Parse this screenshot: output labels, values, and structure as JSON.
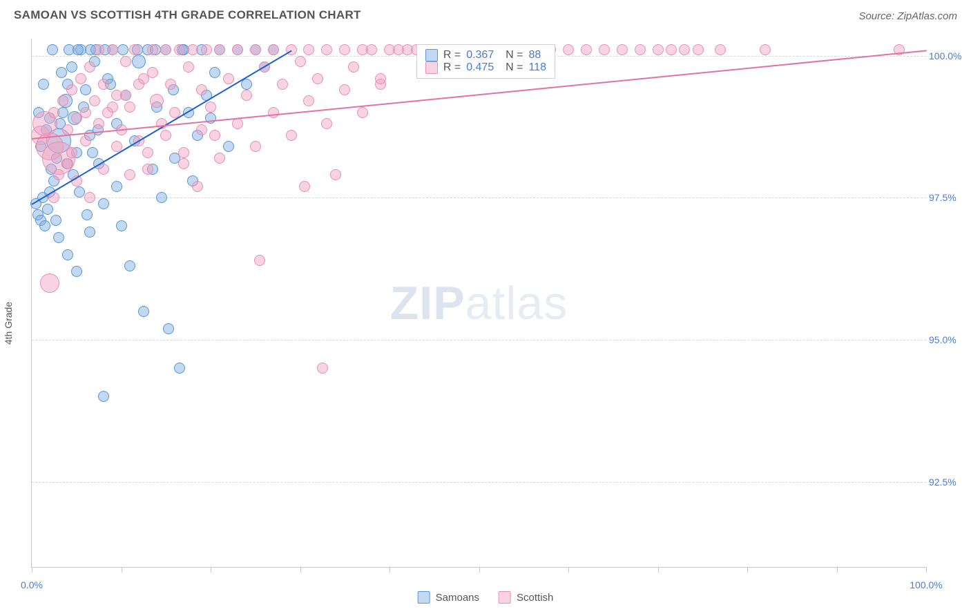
{
  "title": "SAMOAN VS SCOTTISH 4TH GRADE CORRELATION CHART",
  "source": "Source: ZipAtlas.com",
  "watermark": {
    "bold": "ZIP",
    "rest": "atlas"
  },
  "ylabel": "4th Grade",
  "chart": {
    "type": "scatter",
    "background_color": "#ffffff",
    "grid_color": "#d8d8d8",
    "axis_color": "#c8c8c8",
    "label_color": "#4a7bd0",
    "label_fontsize": 14,
    "xlim": [
      0,
      100
    ],
    "ylim": [
      91.0,
      100.3
    ],
    "xticks": [
      0,
      10,
      20,
      30,
      40,
      50,
      60,
      70,
      80,
      90,
      100
    ],
    "xtick_labels": {
      "0": "0.0%",
      "100": "100.0%"
    },
    "yticks": [
      92.5,
      95.0,
      97.5,
      100.0
    ],
    "ytick_labels": [
      "92.5%",
      "95.0%",
      "97.5%",
      "100.0%"
    ],
    "series": [
      {
        "name": "Samoans",
        "fill": "rgba(120,170,225,0.45)",
        "stroke": "#5a95d6",
        "trend_color": "#1f5fd0",
        "R": "0.367",
        "N": "88",
        "trend": {
          "x1": 0,
          "y1": 97.4,
          "x2": 29,
          "y2": 100.1
        },
        "points": [
          [
            0.5,
            97.4,
            8
          ],
          [
            0.7,
            97.2,
            8
          ],
          [
            1.0,
            97.1,
            8
          ],
          [
            1.2,
            97.5,
            8
          ],
          [
            1.5,
            97.0,
            8
          ],
          [
            1.8,
            97.3,
            8
          ],
          [
            2.0,
            97.6,
            8
          ],
          [
            2.2,
            98.0,
            8
          ],
          [
            2.5,
            97.8,
            8
          ],
          [
            2.8,
            98.2,
            8
          ],
          [
            3.0,
            98.5,
            18
          ],
          [
            3.2,
            98.8,
            8
          ],
          [
            3.5,
            99.0,
            8
          ],
          [
            3.8,
            99.2,
            10
          ],
          [
            4.0,
            99.5,
            8
          ],
          [
            4.2,
            100.1,
            8
          ],
          [
            4.5,
            99.8,
            8
          ],
          [
            4.8,
            98.9,
            10
          ],
          [
            5.0,
            98.3,
            8
          ],
          [
            5.5,
            100.1,
            8
          ],
          [
            6.0,
            99.4,
            8
          ],
          [
            6.2,
            97.2,
            8
          ],
          [
            6.5,
            98.6,
            8
          ],
          [
            7.0,
            99.9,
            8
          ],
          [
            7.2,
            100.1,
            8
          ],
          [
            7.5,
            98.1,
            8
          ],
          [
            8.0,
            97.4,
            8
          ],
          [
            8.5,
            99.6,
            8
          ],
          [
            9.0,
            100.1,
            8
          ],
          [
            9.5,
            98.8,
            8
          ],
          [
            10.0,
            97.0,
            8
          ],
          [
            10.5,
            99.3,
            8
          ],
          [
            11.0,
            96.3,
            8
          ],
          [
            11.5,
            98.5,
            8
          ],
          [
            12.0,
            99.9,
            10
          ],
          [
            12.5,
            95.5,
            8
          ],
          [
            13.0,
            100.1,
            8
          ],
          [
            13.5,
            98.0,
            8
          ],
          [
            14.0,
            99.1,
            8
          ],
          [
            14.5,
            97.5,
            8
          ],
          [
            15.0,
            100.1,
            8
          ],
          [
            15.3,
            95.2,
            8
          ],
          [
            15.8,
            99.4,
            8
          ],
          [
            16.0,
            98.2,
            8
          ],
          [
            16.5,
            94.5,
            8
          ],
          [
            17.0,
            100.1,
            8
          ],
          [
            17.5,
            99.0,
            8
          ],
          [
            18.0,
            97.8,
            8
          ],
          [
            18.5,
            98.6,
            8
          ],
          [
            19.0,
            100.1,
            8
          ],
          [
            19.5,
            99.3,
            8
          ],
          [
            20.0,
            98.9,
            8
          ],
          [
            20.5,
            99.7,
            8
          ],
          [
            21.0,
            100.1,
            8
          ],
          [
            22.0,
            98.4,
            8
          ],
          [
            23.0,
            100.1,
            8
          ],
          [
            24.0,
            99.5,
            8
          ],
          [
            25.0,
            100.1,
            8
          ],
          [
            26.0,
            99.8,
            8
          ],
          [
            27.0,
            100.1,
            8
          ],
          [
            3.0,
            96.8,
            8
          ],
          [
            4.0,
            96.5,
            8
          ],
          [
            5.0,
            96.2,
            8
          ],
          [
            2.0,
            98.9,
            8
          ],
          [
            1.0,
            98.4,
            8
          ],
          [
            0.8,
            99.0,
            8
          ],
          [
            1.3,
            99.5,
            8
          ],
          [
            6.5,
            96.9,
            8
          ],
          [
            8.0,
            94.0,
            8
          ],
          [
            9.5,
            97.7,
            8
          ],
          [
            3.3,
            99.7,
            8
          ],
          [
            4.6,
            97.9,
            8
          ],
          [
            5.8,
            99.1,
            8
          ],
          [
            7.4,
            98.7,
            8
          ],
          [
            8.8,
            99.5,
            8
          ],
          [
            2.7,
            97.1,
            8
          ],
          [
            3.9,
            98.1,
            8
          ],
          [
            5.3,
            97.6,
            8
          ],
          [
            6.8,
            98.3,
            8
          ],
          [
            1.6,
            98.7,
            8
          ],
          [
            2.3,
            100.1,
            8
          ],
          [
            11.8,
            100.1,
            8
          ],
          [
            13.8,
            100.1,
            8
          ],
          [
            16.8,
            100.1,
            8
          ],
          [
            10.2,
            100.1,
            8
          ],
          [
            8.2,
            100.1,
            8
          ],
          [
            6.6,
            100.1,
            8
          ],
          [
            5.2,
            100.1,
            8
          ]
        ]
      },
      {
        "name": "Scottish",
        "fill": "rgba(240,160,190,0.45)",
        "stroke": "#e68fb3",
        "trend_color": "#e670a0",
        "R": "0.475",
        "N": "118",
        "trend": {
          "x1": 0,
          "y1": 98.55,
          "x2": 100,
          "y2": 100.1
        },
        "points": [
          [
            1.0,
            98.6,
            14
          ],
          [
            1.5,
            98.8,
            18
          ],
          [
            2.0,
            98.4,
            20
          ],
          [
            2.5,
            99.0,
            8
          ],
          [
            3.0,
            98.2,
            24
          ],
          [
            3.5,
            99.2,
            8
          ],
          [
            4.0,
            98.7,
            8
          ],
          [
            4.5,
            99.4,
            8
          ],
          [
            5.0,
            98.9,
            8
          ],
          [
            5.5,
            99.6,
            8
          ],
          [
            6.0,
            99.0,
            8
          ],
          [
            6.5,
            99.8,
            8
          ],
          [
            7.0,
            99.2,
            8
          ],
          [
            7.5,
            100.1,
            8
          ],
          [
            8.0,
            99.5,
            8
          ],
          [
            8.5,
            99.0,
            8
          ],
          [
            9.0,
            100.1,
            8
          ],
          [
            9.5,
            99.3,
            8
          ],
          [
            10.0,
            98.7,
            8
          ],
          [
            10.5,
            99.9,
            8
          ],
          [
            11.0,
            99.1,
            8
          ],
          [
            11.5,
            100.1,
            8
          ],
          [
            12.0,
            98.5,
            8
          ],
          [
            12.5,
            99.6,
            8
          ],
          [
            13.0,
            98.0,
            8
          ],
          [
            13.5,
            100.1,
            8
          ],
          [
            14.0,
            99.2,
            10
          ],
          [
            14.5,
            98.8,
            8
          ],
          [
            15.0,
            100.1,
            8
          ],
          [
            15.5,
            99.5,
            8
          ],
          [
            16.0,
            99.0,
            8
          ],
          [
            16.5,
            100.1,
            8
          ],
          [
            17.0,
            98.3,
            8
          ],
          [
            17.5,
            99.8,
            8
          ],
          [
            18.0,
            100.1,
            8
          ],
          [
            18.5,
            97.7,
            8
          ],
          [
            19.0,
            99.4,
            8
          ],
          [
            19.5,
            100.1,
            8
          ],
          [
            20.0,
            99.1,
            8
          ],
          [
            20.5,
            98.6,
            8
          ],
          [
            21.0,
            100.1,
            8
          ],
          [
            22.0,
            99.6,
            8
          ],
          [
            23.0,
            100.1,
            8
          ],
          [
            24.0,
            99.3,
            8
          ],
          [
            25.0,
            100.1,
            8
          ],
          [
            25.5,
            96.4,
            8
          ],
          [
            26.0,
            99.8,
            8
          ],
          [
            27.0,
            100.1,
            8
          ],
          [
            28.0,
            99.5,
            8
          ],
          [
            29.0,
            100.1,
            8
          ],
          [
            30.0,
            99.9,
            8
          ],
          [
            30.5,
            97.7,
            8
          ],
          [
            31.0,
            100.1,
            8
          ],
          [
            32.0,
            99.6,
            8
          ],
          [
            32.5,
            94.5,
            8
          ],
          [
            33.0,
            100.1,
            8
          ],
          [
            34.0,
            97.9,
            8
          ],
          [
            35.0,
            100.1,
            8
          ],
          [
            36.0,
            99.8,
            8
          ],
          [
            37.0,
            100.1,
            8
          ],
          [
            38.0,
            100.1,
            8
          ],
          [
            39.0,
            99.5,
            8
          ],
          [
            40.0,
            100.1,
            8
          ],
          [
            41.0,
            100.1,
            8
          ],
          [
            42.0,
            100.1,
            8
          ],
          [
            43.0,
            100.1,
            8
          ],
          [
            44.0,
            100.1,
            8
          ],
          [
            45.0,
            100.1,
            8
          ],
          [
            46.0,
            100.1,
            8
          ],
          [
            47.0,
            100.1,
            8
          ],
          [
            48.0,
            100.1,
            8
          ],
          [
            50.0,
            100.1,
            8
          ],
          [
            52.0,
            100.1,
            8
          ],
          [
            54.0,
            100.1,
            8
          ],
          [
            56.0,
            100.1,
            8
          ],
          [
            58.0,
            100.1,
            8
          ],
          [
            60.0,
            100.1,
            8
          ],
          [
            62.0,
            100.1,
            8
          ],
          [
            64.0,
            100.1,
            8
          ],
          [
            66.0,
            100.1,
            8
          ],
          [
            68.0,
            100.1,
            8
          ],
          [
            70.0,
            100.1,
            8
          ],
          [
            71.5,
            100.1,
            8
          ],
          [
            73.0,
            100.1,
            8
          ],
          [
            74.5,
            100.1,
            8
          ],
          [
            77.0,
            100.1,
            8
          ],
          [
            82.0,
            100.1,
            8
          ],
          [
            97.0,
            100.1,
            8
          ],
          [
            2.0,
            96.0,
            14
          ],
          [
            2.5,
            97.5,
            8
          ],
          [
            3.0,
            97.9,
            8
          ],
          [
            4.0,
            98.1,
            8
          ],
          [
            5.0,
            97.8,
            8
          ],
          [
            6.5,
            97.5,
            8
          ],
          [
            8.0,
            98.0,
            8
          ],
          [
            9.5,
            98.4,
            8
          ],
          [
            11.0,
            97.9,
            8
          ],
          [
            13.0,
            98.3,
            8
          ],
          [
            15.0,
            98.6,
            8
          ],
          [
            17.0,
            98.1,
            8
          ],
          [
            19.0,
            98.7,
            8
          ],
          [
            21.0,
            98.2,
            8
          ],
          [
            23.0,
            98.8,
            8
          ],
          [
            25.0,
            98.4,
            8
          ],
          [
            27.0,
            99.0,
            8
          ],
          [
            29.0,
            98.6,
            8
          ],
          [
            31.0,
            99.2,
            8
          ],
          [
            33.0,
            98.8,
            8
          ],
          [
            35.0,
            99.4,
            8
          ],
          [
            37.0,
            99.0,
            8
          ],
          [
            39.0,
            99.6,
            8
          ],
          [
            4.5,
            98.3,
            8
          ],
          [
            6.0,
            98.5,
            8
          ],
          [
            7.5,
            98.8,
            8
          ],
          [
            9.0,
            99.1,
            8
          ],
          [
            10.5,
            99.3,
            8
          ],
          [
            12.0,
            99.5,
            8
          ],
          [
            13.5,
            99.7,
            8
          ]
        ]
      }
    ]
  },
  "legend_box": {
    "left_pct": 43,
    "top_pct": 1
  },
  "bottom_legend": [
    {
      "label": "Samoans",
      "fill": "rgba(120,170,225,0.45)",
      "stroke": "#5a95d6"
    },
    {
      "label": "Scottish",
      "fill": "rgba(240,160,190,0.45)",
      "stroke": "#e68fb3"
    }
  ]
}
